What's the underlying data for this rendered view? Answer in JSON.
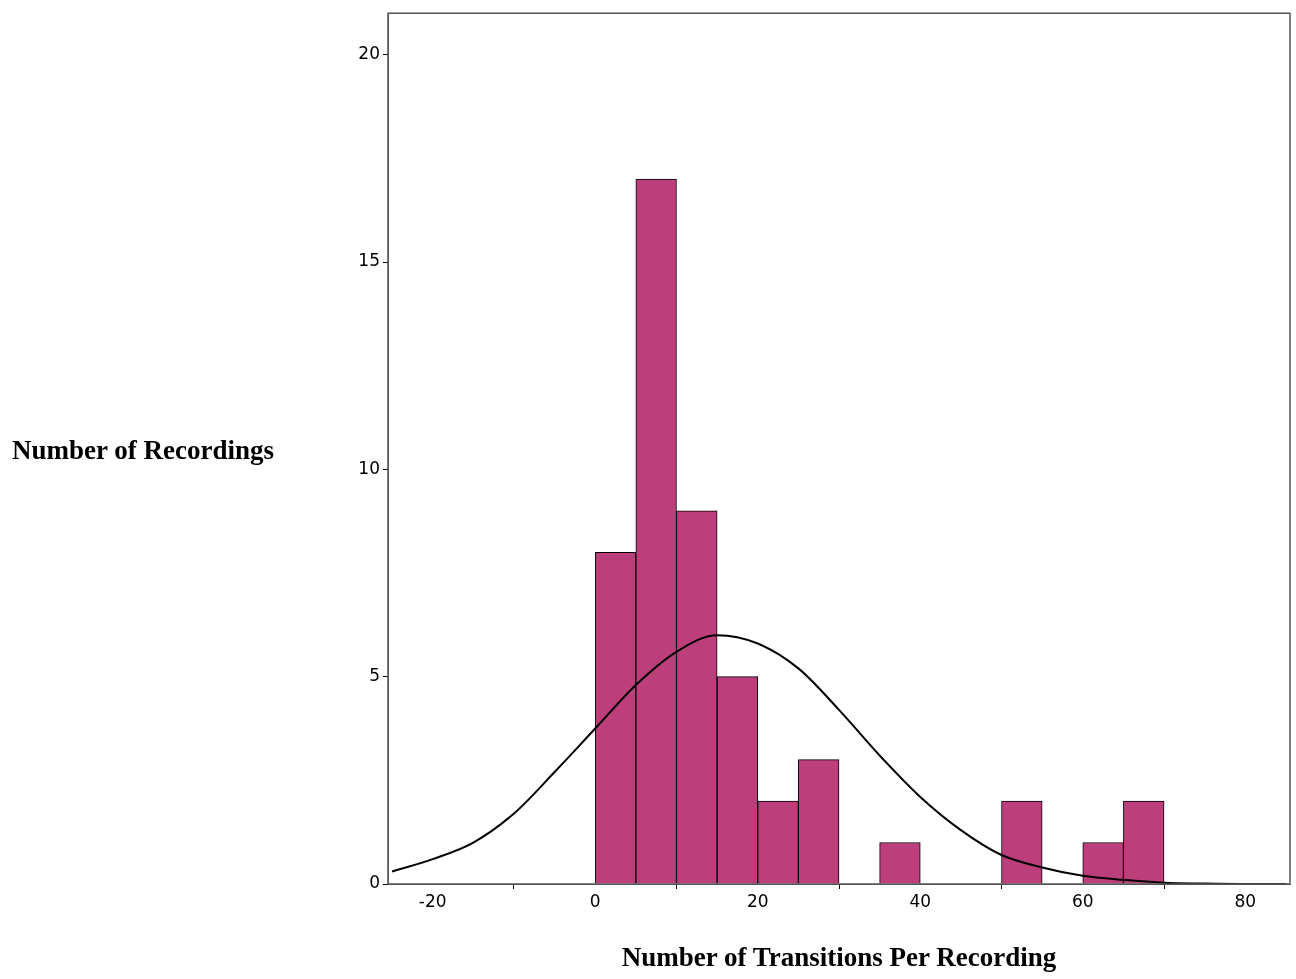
{
  "chart_data": {
    "type": "histogram",
    "xlabel": "Number of Transitions Per Recording",
    "ylabel": "Number of Recordings",
    "bins": [
      0,
      5,
      10,
      15,
      20,
      25,
      30,
      35,
      40,
      45,
      50,
      55,
      60,
      65,
      70
    ],
    "series": [
      {
        "color": "#bc3f7c",
        "values": [
          8,
          17,
          9,
          5,
          2,
          3,
          0,
          1,
          0,
          0,
          2,
          0,
          1,
          2
        ]
      },
      {
        "type": "line",
        "color": "#000000",
        "x": [
          -25,
          -20,
          -15,
          -10,
          -5,
          0,
          5,
          10,
          15,
          20,
          25,
          30,
          35,
          40,
          45,
          50,
          55,
          60,
          65,
          70,
          75,
          80,
          85
        ],
        "values": [
          0.3,
          0.6,
          1.0,
          1.7,
          2.7,
          3.75,
          4.8,
          5.6,
          6.0,
          5.8,
          5.2,
          4.2,
          3.1,
          2.1,
          1.3,
          0.7,
          0.4,
          0.2,
          0.1,
          0.03,
          0.01,
          0,
          0
        ]
      }
    ],
    "xlim": [
      -25.5,
      85.5
    ],
    "xticks": [
      -20,
      0,
      20,
      40,
      60,
      80
    ],
    "ylim": [
      0,
      21
    ],
    "yticks": [
      0,
      5,
      10,
      15,
      20
    ],
    "grid": false,
    "legend": false,
    "marker": "none",
    "line_style": "solid"
  }
}
